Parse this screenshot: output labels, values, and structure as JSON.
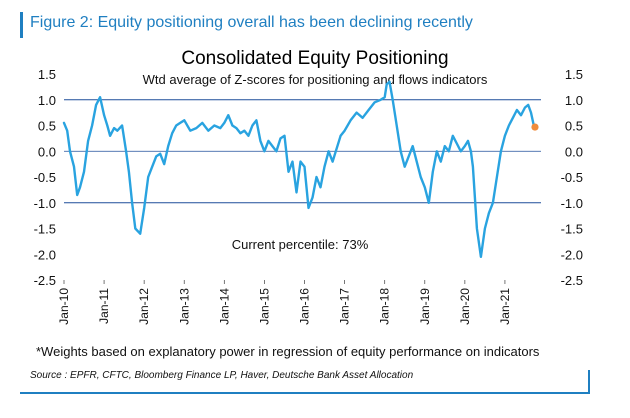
{
  "figure": {
    "title": "Figure 2: Equity positioning overall has been declining recently",
    "footnote": "*Weights based on explanatory power in regression of equity performance on indicators",
    "source": "Source : EPFR, CFTC, Bloomberg Finance LP, Haver, Deutsche Bank Asset Allocation"
  },
  "chart_data": {
    "type": "line",
    "title": "Consolidated Equity Positioning",
    "subtitle": "Wtd average of Z-scores for positioning and flows indicators",
    "xlabel": "",
    "ylabel": "",
    "ylim": [
      -2.5,
      1.5
    ],
    "yticks": [
      1.5,
      1.0,
      0.5,
      0.0,
      -0.5,
      -1.0,
      -1.5,
      -2.0,
      -2.5
    ],
    "ytick_labels": [
      "1.5",
      "1.0",
      "0.5",
      "0.0",
      "-0.5",
      "-1.0",
      "-1.5",
      "-2.0",
      "-2.5"
    ],
    "xlim": [
      2010.0,
      2021.9
    ],
    "x_tick_labels": [
      "Jan-10",
      "Jan-11",
      "Jan-12",
      "Jan-13",
      "Jan-14",
      "Jan-15",
      "Jan-16",
      "Jan-17",
      "Jan-18",
      "Jan-19",
      "Jan-20",
      "Jan-21"
    ],
    "x_tick_values": [
      2010,
      2011,
      2012,
      2013,
      2014,
      2015,
      2016,
      2017,
      2018,
      2019,
      2020,
      2021
    ],
    "reference_lines": [
      1.0,
      0.0,
      -1.0
    ],
    "annotation": "Current percentile: 73%",
    "line_color": "#29a3e0",
    "reference_line_color": "#1f4e9a",
    "latest_marker_color": "#f08c3c",
    "series": [
      {
        "x": [
          2010.0,
          2010.08,
          2010.15,
          2010.25,
          2010.33,
          2010.4,
          2010.5,
          2010.6,
          2010.7,
          2010.8,
          2010.9,
          2011.0,
          2011.08,
          2011.15,
          2011.25,
          2011.33,
          2011.45,
          2011.55,
          2011.62,
          2011.7,
          2011.78,
          2011.9,
          2012.0,
          2012.1,
          2012.2,
          2012.3,
          2012.4,
          2012.5,
          2012.6,
          2012.7,
          2012.8,
          2012.9,
          2013.0,
          2013.15,
          2013.3,
          2013.45,
          2013.6,
          2013.75,
          2013.9,
          2014.0,
          2014.1,
          2014.2,
          2014.3,
          2014.4,
          2014.5,
          2014.6,
          2014.7,
          2014.8,
          2014.9,
          2015.0,
          2015.1,
          2015.2,
          2015.3,
          2015.4,
          2015.5,
          2015.6,
          2015.7,
          2015.8,
          2015.9,
          2016.0,
          2016.1,
          2016.2,
          2016.3,
          2016.4,
          2016.5,
          2016.6,
          2016.7,
          2016.8,
          2016.9,
          2017.0,
          2017.15,
          2017.3,
          2017.45,
          2017.6,
          2017.75,
          2017.9,
          2018.0,
          2018.05,
          2018.12,
          2018.2,
          2018.3,
          2018.4,
          2018.5,
          2018.6,
          2018.7,
          2018.8,
          2018.9,
          2019.0,
          2019.1,
          2019.2,
          2019.3,
          2019.4,
          2019.5,
          2019.6,
          2019.7,
          2019.8,
          2019.9,
          2020.0,
          2020.08,
          2020.15,
          2020.2,
          2020.3,
          2020.4,
          2020.5,
          2020.6,
          2020.7,
          2020.8,
          2020.9,
          2021.0,
          2021.1,
          2021.2,
          2021.3,
          2021.4,
          2021.5,
          2021.58,
          2021.65,
          2021.72
        ],
        "values": [
          0.55,
          0.4,
          0.0,
          -0.3,
          -0.85,
          -0.7,
          -0.4,
          0.2,
          0.5,
          0.9,
          1.05,
          0.7,
          0.5,
          0.3,
          0.45,
          0.4,
          0.5,
          0.0,
          -0.4,
          -1.0,
          -1.5,
          -1.6,
          -1.1,
          -0.5,
          -0.3,
          -0.1,
          -0.05,
          -0.25,
          0.1,
          0.35,
          0.5,
          0.55,
          0.6,
          0.4,
          0.45,
          0.55,
          0.4,
          0.5,
          0.45,
          0.55,
          0.7,
          0.5,
          0.45,
          0.35,
          0.4,
          0.3,
          0.5,
          0.6,
          0.2,
          0.0,
          0.2,
          0.1,
          0.0,
          0.25,
          0.3,
          -0.4,
          -0.2,
          -0.8,
          -0.2,
          -0.3,
          -1.1,
          -0.9,
          -0.5,
          -0.7,
          -0.3,
          0.0,
          -0.2,
          0.05,
          0.3,
          0.4,
          0.6,
          0.75,
          0.65,
          0.8,
          0.95,
          1.0,
          1.05,
          1.3,
          1.35,
          1.0,
          0.5,
          0.0,
          -0.3,
          -0.1,
          0.1,
          -0.2,
          -0.5,
          -0.7,
          -1.0,
          -0.4,
          0.0,
          -0.2,
          0.1,
          0.0,
          0.3,
          0.15,
          0.0,
          0.1,
          0.2,
          0.0,
          -0.3,
          -1.5,
          -2.05,
          -1.5,
          -1.2,
          -1.0,
          -0.5,
          0.0,
          0.3,
          0.5,
          0.65,
          0.8,
          0.7,
          0.85,
          0.9,
          0.75,
          0.5
        ]
      }
    ],
    "latest_point": {
      "x": 2021.75,
      "y": 0.47
    }
  }
}
